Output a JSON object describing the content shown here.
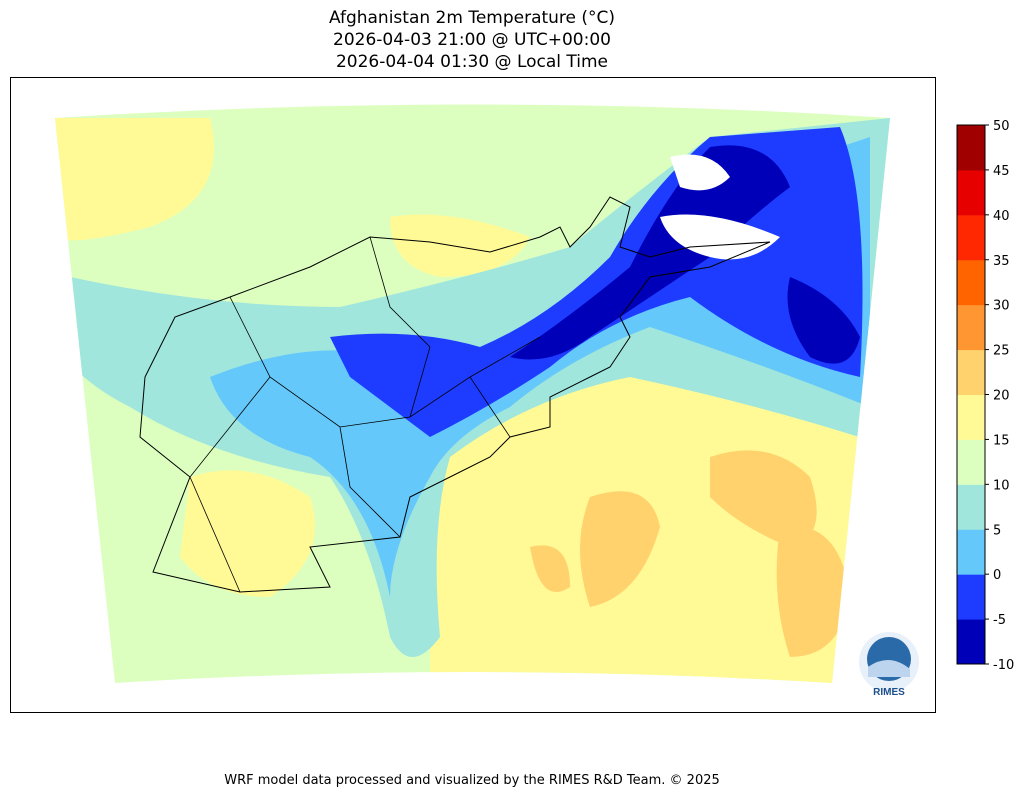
{
  "title": {
    "line1": "Afghanistan 2m Temperature (°C)",
    "line2": "2026-04-03 21:00 @ UTC+00:00",
    "line3": "2026-04-04 01:30 @ Local Time"
  },
  "chart_data": {
    "type": "heatmap",
    "title": "Afghanistan 2m Temperature (°C)",
    "colorbar": {
      "levels": [
        -10,
        -5,
        0,
        5,
        10,
        15,
        20,
        25,
        30,
        35,
        40,
        45,
        50
      ],
      "tick_labels": [
        "-10",
        "-5",
        "0",
        "5",
        "10",
        "15",
        "20",
        "25",
        "30",
        "35",
        "40",
        "45",
        "50"
      ],
      "colors": [
        "#0000b9",
        "#1e3cff",
        "#64c8fa",
        "#a0e6dc",
        "#dcffc0",
        "#fffa96",
        "#ffd26e",
        "#ff9632",
        "#ff6400",
        "#ff2800",
        "#e60000",
        "#a00000"
      ],
      "placement": "right"
    }
  },
  "logo": {
    "text": "RIMES"
  },
  "footer": "WRF model data processed and visualized by the RIMES R&D Team. © 2025"
}
